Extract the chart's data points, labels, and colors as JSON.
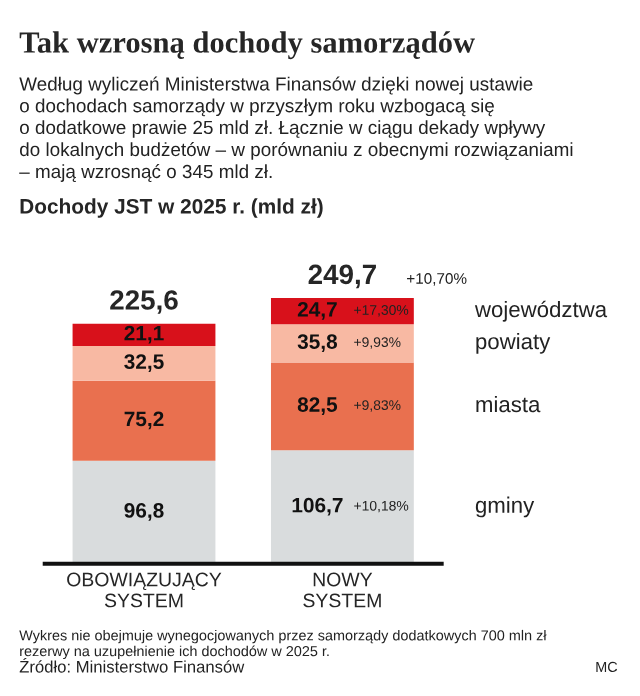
{
  "chart_data": {
    "type": "bar",
    "stacked": true,
    "title": "Tak wzrosną dochody samorządów",
    "subtitle": "Według wyliczeń Ministerstwa Finansów dzięki nowej ustawie\no dochodach samorządy w przyszłym roku wzbogacą się\no dodatkowe prawie 25 mld zł. Łącznie w ciągu dekady wpływy\ndo lokalnych budżetów – w porównaniu z obecnymi rozwiązaniami\n– mają wzrosnąć o 345 mld zł.",
    "ylabel": "Dochody JST w 2025 r. (mld zł)",
    "categories": [
      "OBOWIĄZUJĄCY\nSYSTEM",
      "NOWY\nSYSTEM"
    ],
    "series": [
      {
        "name": "gminy",
        "color": "#d9dcdd",
        "values": [
          96.8,
          106.7
        ],
        "value_labels": [
          "96,8",
          "106,7"
        ]
      },
      {
        "name": "miasta",
        "color": "#e9704f",
        "values": [
          75.2,
          82.5
        ],
        "value_labels": [
          "75,2",
          "82,5"
        ]
      },
      {
        "name": "powiaty",
        "color": "#f8b9a3",
        "values": [
          32.5,
          35.8
        ],
        "value_labels": [
          "32,5",
          "35,8"
        ]
      },
      {
        "name": "województwa",
        "color": "#d8111b",
        "values": [
          21.1,
          24.7
        ],
        "value_labels": [
          "21,1",
          "24,7"
        ]
      }
    ],
    "totals": [
      "225,6",
      "249,7"
    ],
    "annotations": [
      "+10,18%",
      "+9,83%",
      "+9,93%",
      "+17,30%",
      "+10,70%",
      "Wykres nie obejmuje wynegocjowanych przez samorządy dodatkowych 700 mln zł\nrezerwy na uzupełnienie ich dochodów w 2025 r.",
      "Źródło: Ministerstwo Finansów",
      "MC"
    ]
  }
}
